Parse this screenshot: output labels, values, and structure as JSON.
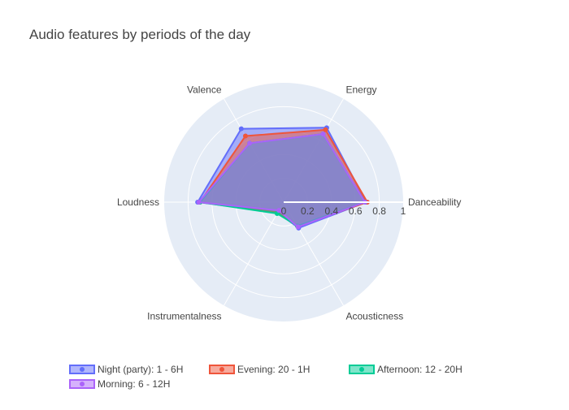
{
  "chart_data": {
    "type": "radar",
    "title": "Audio features by periods of the day",
    "axes": [
      "Danceability",
      "Energy",
      "Valence",
      "Loudness",
      "Instrumentalness",
      "Acousticness"
    ],
    "radial_range": [
      0,
      1
    ],
    "radial_ticks": [
      "0",
      "0.2",
      "0.4",
      "0.6",
      "0.8",
      "1"
    ],
    "grid": true,
    "legend_position": "bottom",
    "series": [
      {
        "name": "Night (party): 1 - 6H",
        "color": "#636efa",
        "values": [
          0.69,
          0.72,
          0.71,
          0.72,
          0.1,
          0.25
        ]
      },
      {
        "name": "Evening: 20 - 1H",
        "color": "#ef553b",
        "values": [
          0.7,
          0.7,
          0.64,
          0.7,
          0.1,
          0.23
        ]
      },
      {
        "name": "Afternoon: 12 - 20H",
        "color": "#00cc96",
        "values": [
          0.68,
          0.66,
          0.57,
          0.7,
          0.11,
          0.23
        ]
      },
      {
        "name": "Morning: 6 - 12H",
        "color": "#ab63fa",
        "values": [
          0.68,
          0.66,
          0.57,
          0.71,
          0.08,
          0.24
        ]
      }
    ]
  }
}
